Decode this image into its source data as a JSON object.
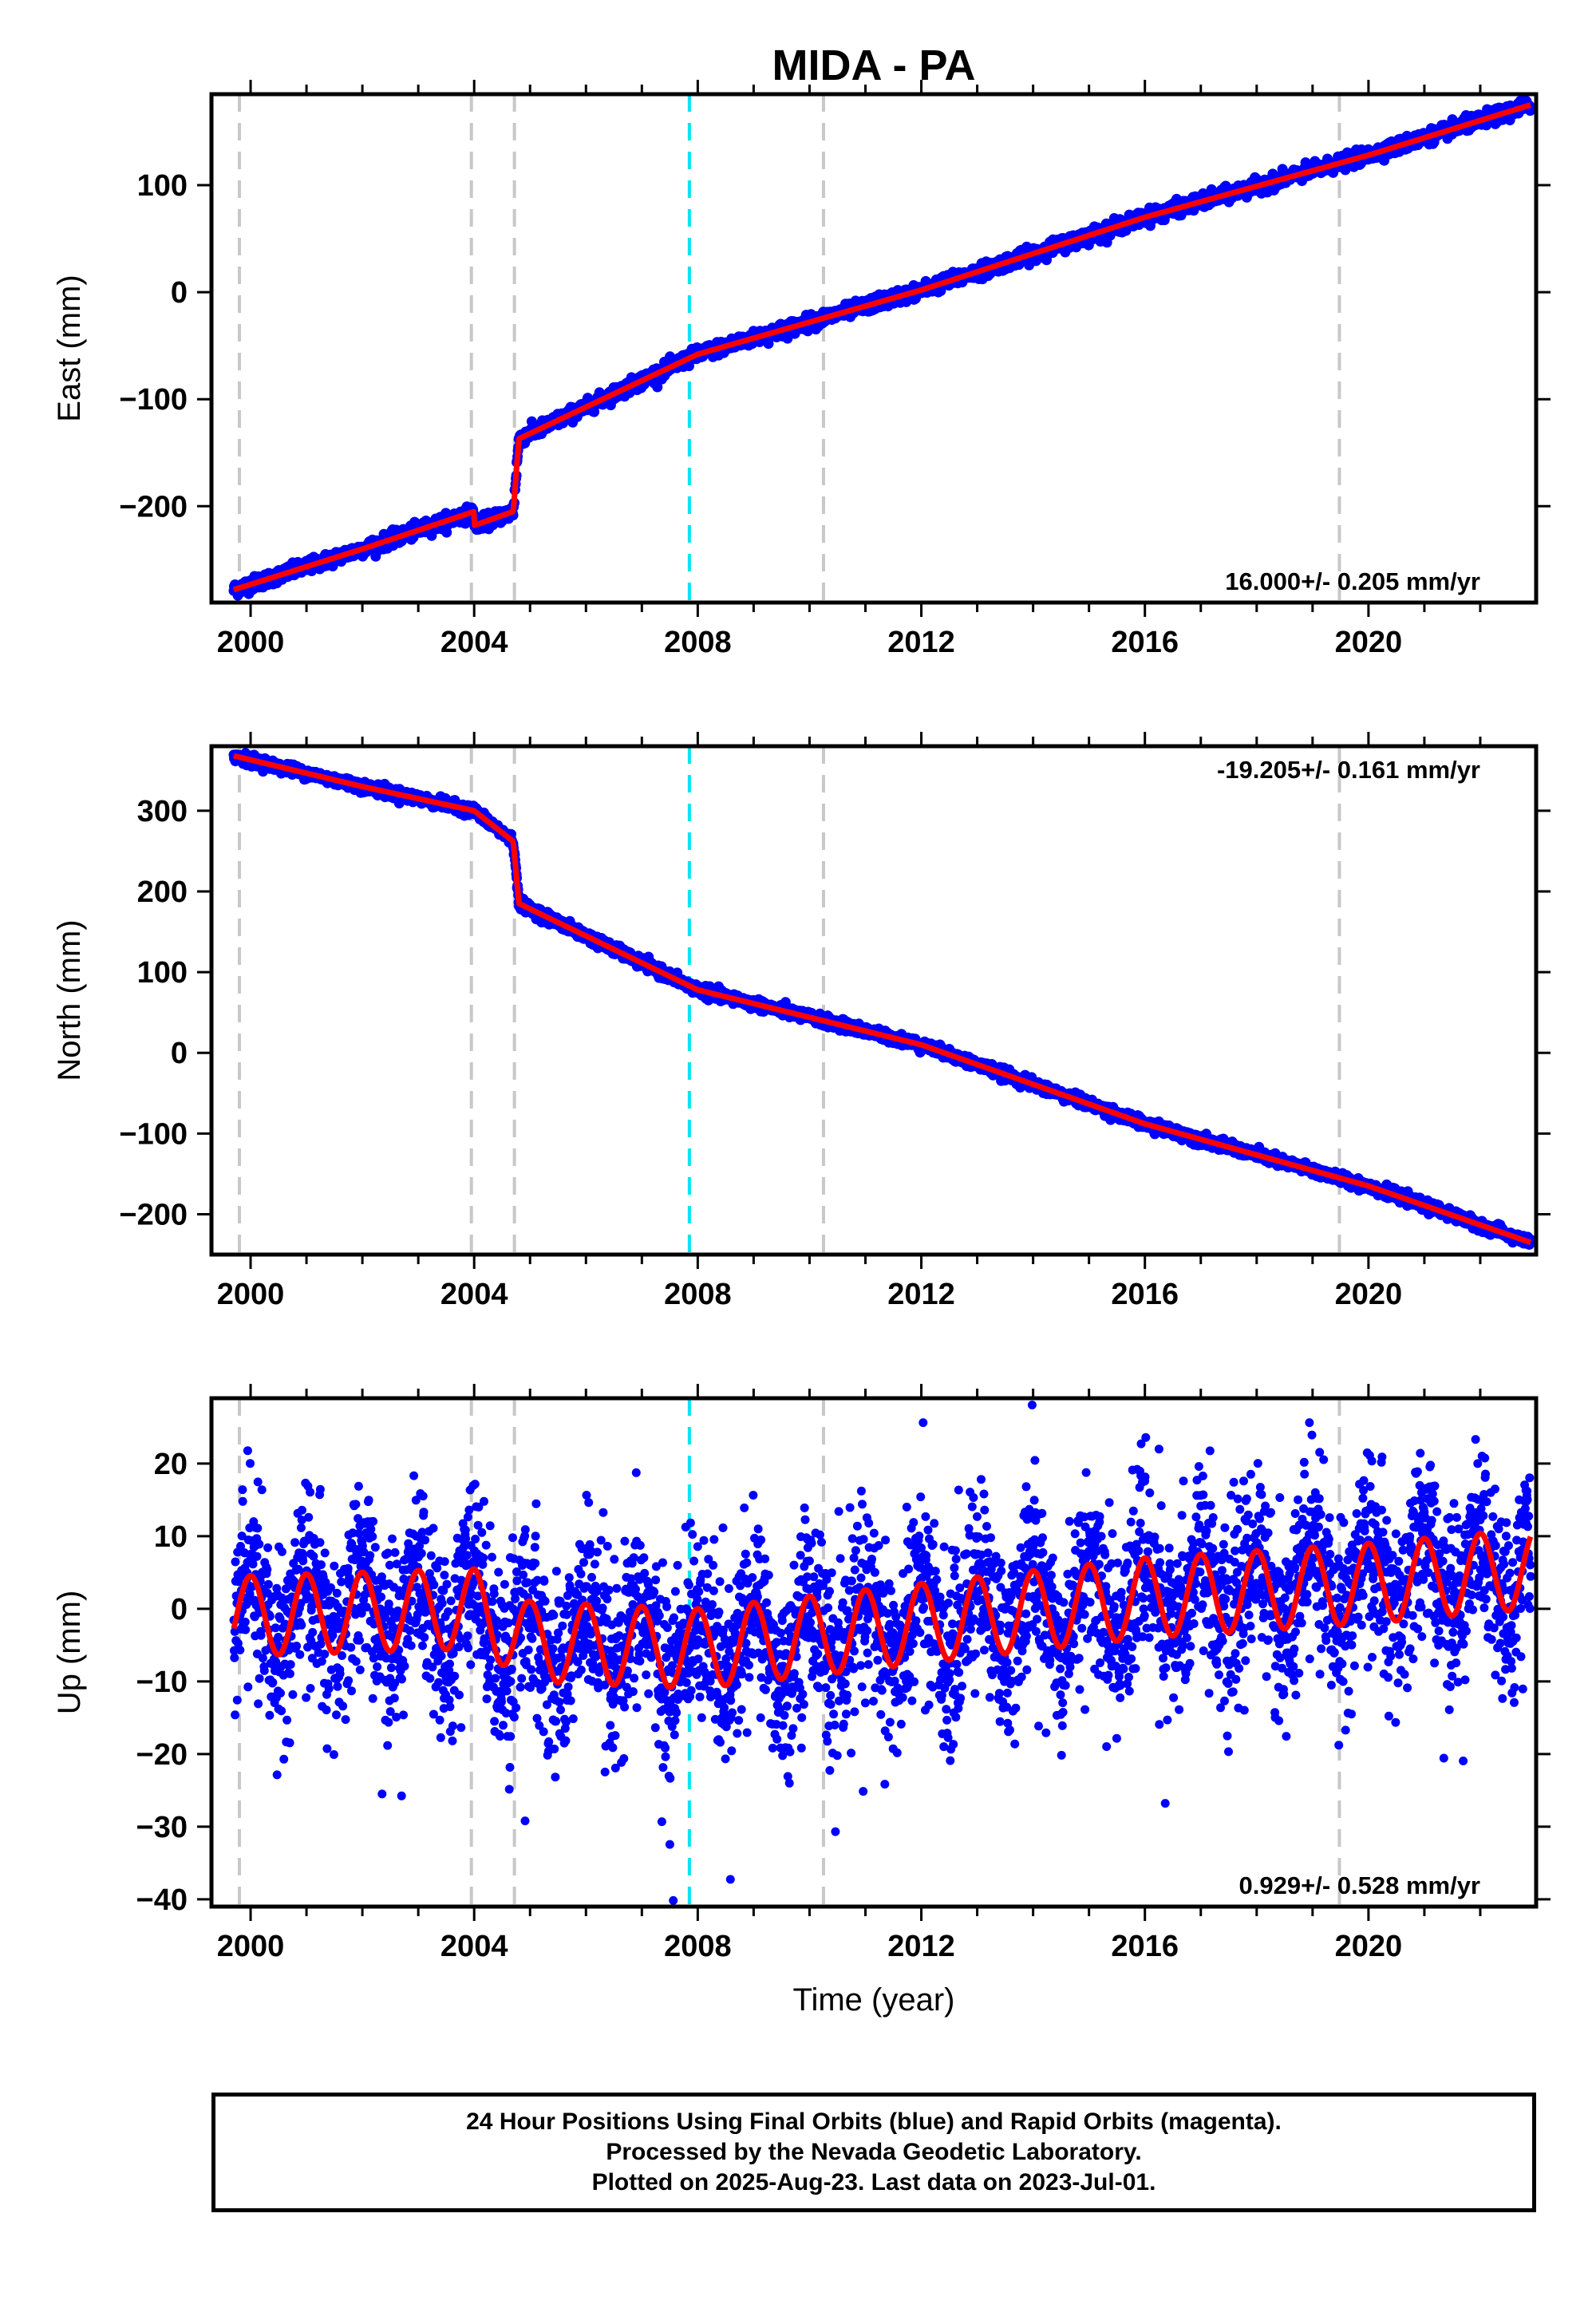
{
  "title": "MIDA - PA",
  "colors": {
    "data": "#0000ff",
    "model": "#ff0000",
    "event_line": "#c8c8c8",
    "highlight_line": "#00e5ee",
    "frame": "#000000"
  },
  "chart_data": [
    {
      "type": "scatter",
      "component": "East",
      "ylabel": "East (mm)",
      "xlabel": "",
      "xlim": [
        1999.3,
        2023.0
      ],
      "ylim": [
        -290,
        185
      ],
      "yticks": [
        -200,
        -100,
        0,
        100
      ],
      "ytick_labels": [
        "−200",
        "−100",
        "0",
        "100"
      ],
      "xticks": [
        2000,
        2004,
        2008,
        2012,
        2016,
        2020
      ],
      "rate_label": "16.000+/- 0.205 mm/yr",
      "rate_position": "bottom-right",
      "model_trend": [
        [
          1999.7,
          -278
        ],
        [
          2002.0,
          -240
        ],
        [
          2004.0,
          -205
        ],
        [
          2004.0,
          -218
        ],
        [
          2004.7,
          -205
        ],
        [
          2004.8,
          -137
        ],
        [
          2008.0,
          -58
        ],
        [
          2012.0,
          2
        ],
        [
          2016.0,
          70
        ],
        [
          2020.0,
          128
        ],
        [
          2022.9,
          175
        ]
      ],
      "series": [
        {
          "role": "data",
          "style": "dots"
        },
        {
          "role": "model",
          "style": "line"
        }
      ]
    },
    {
      "type": "scatter",
      "component": "North",
      "ylabel": "North (mm)",
      "xlabel": "",
      "xlim": [
        1999.3,
        2023.0
      ],
      "ylim": [
        -250,
        380
      ],
      "yticks": [
        -200,
        -100,
        0,
        100,
        200,
        300
      ],
      "ytick_labels": [
        "−200",
        "−100",
        "0",
        "100",
        "200",
        "300"
      ],
      "xticks": [
        2000,
        2004,
        2008,
        2012,
        2016,
        2020
      ],
      "rate_label": "-19.205+/- 0.161 mm/yr",
      "rate_position": "top-right",
      "model_trend": [
        [
          1999.7,
          368
        ],
        [
          2002.0,
          330
        ],
        [
          2004.0,
          300
        ],
        [
          2004.7,
          262
        ],
        [
          2004.8,
          185
        ],
        [
          2008.0,
          78
        ],
        [
          2012.0,
          10
        ],
        [
          2016.0,
          -88
        ],
        [
          2020.0,
          -165
        ],
        [
          2022.9,
          -235
        ]
      ],
      "series": [
        {
          "role": "data",
          "style": "dots"
        },
        {
          "role": "model",
          "style": "line"
        }
      ]
    },
    {
      "type": "scatter",
      "component": "Up",
      "ylabel": "Up (mm)",
      "xlabel": "Time (year)",
      "xlim": [
        1999.3,
        2023.0
      ],
      "ylim": [
        -41,
        29
      ],
      "yticks": [
        -40,
        -30,
        -20,
        -10,
        0,
        10,
        20
      ],
      "ytick_labels": [
        "−40",
        "−30",
        "−20",
        "−10",
        "0",
        "10",
        "20"
      ],
      "xticks": [
        2000,
        2004,
        2008,
        2012,
        2016,
        2020
      ],
      "rate_label": "0.929+/- 0.528 mm/yr",
      "rate_position": "bottom-right",
      "model_seasonal": {
        "amplitude_mm": 5.5,
        "period_yr": 1.0
      },
      "model_trend": [
        [
          1999.7,
          -1
        ],
        [
          2004.0,
          0
        ],
        [
          2005.0,
          -4.5
        ],
        [
          2008.0,
          -5.5
        ],
        [
          2012.0,
          -2
        ],
        [
          2016.0,
          1.5
        ],
        [
          2020.0,
          3.5
        ],
        [
          2022.9,
          5.5
        ]
      ],
      "series": [
        {
          "role": "data",
          "style": "dots"
        },
        {
          "role": "model",
          "style": "line"
        }
      ]
    }
  ],
  "event_lines": {
    "gray": [
      1999.8,
      2003.95,
      2004.72,
      2010.25,
      2019.48
    ],
    "cyan": [
      2007.85
    ]
  },
  "footer": {
    "line1": "24 Hour Positions Using Final Orbits (blue) and Rapid Orbits (magenta).",
    "line2": "Processed by the Nevada Geodetic Laboratory.",
    "line3": "Plotted on 2025-Aug-23. Last data on 2023-Jul-01."
  }
}
